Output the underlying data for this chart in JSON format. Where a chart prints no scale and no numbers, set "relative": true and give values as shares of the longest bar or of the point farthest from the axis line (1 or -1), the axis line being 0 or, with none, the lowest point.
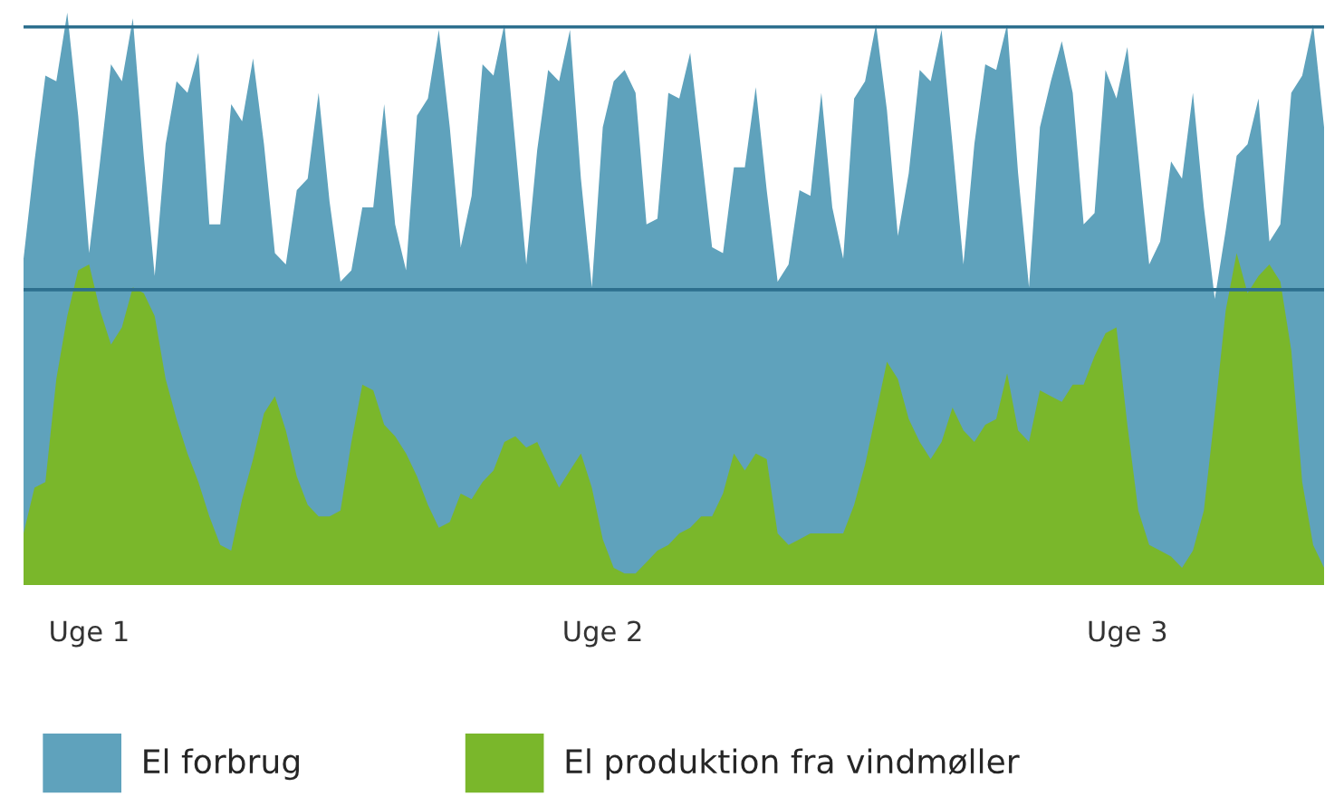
{
  "chart_data": {
    "type": "area",
    "relative": true,
    "categories": [
      null,
      null,
      null,
      null,
      null,
      null,
      "Uge 1",
      null,
      null,
      null,
      null,
      null,
      null,
      null,
      null,
      null,
      null,
      null,
      null,
      null,
      null,
      null,
      null,
      null,
      null,
      null,
      null,
      null,
      null,
      null,
      null,
      null,
      null,
      null,
      null,
      null,
      null,
      null,
      null,
      null,
      null,
      null,
      null,
      null,
      null,
      null,
      null,
      null,
      null,
      null,
      null,
      null,
      null,
      "Uge 2",
      null,
      null,
      null,
      null,
      null,
      null,
      null,
      null,
      null,
      null,
      null,
      null,
      null,
      null,
      null,
      null,
      null,
      null,
      null,
      null,
      null,
      null,
      null,
      null,
      null,
      null,
      null,
      null,
      null,
      null,
      null,
      null,
      null,
      null,
      null,
      null,
      null,
      null,
      null,
      null,
      null,
      null,
      null,
      null,
      null,
      null,
      null,
      "Uge 3",
      null,
      null,
      null,
      null,
      null,
      null,
      null,
      null,
      null,
      null,
      null,
      null,
      null,
      null,
      null,
      null,
      null,
      null
    ],
    "grid": false,
    "legend": "bottom",
    "ref_lines": [
      {
        "axis": "y",
        "value": 0.975,
        "color": "#2d6f8e"
      },
      {
        "axis": "y",
        "value": 0.516,
        "color": "#2d6f8e"
      }
    ],
    "series": [
      {
        "name": "El forbrug",
        "color": "#5fa2bc",
        "values": [
          0.57,
          0.74,
          0.89,
          0.88,
          1.0,
          0.82,
          0.58,
          0.74,
          0.91,
          0.88,
          0.99,
          0.75,
          0.54,
          0.77,
          0.88,
          0.86,
          0.93,
          0.63,
          0.63,
          0.84,
          0.81,
          0.92,
          0.77,
          0.58,
          0.56,
          0.69,
          0.71,
          0.86,
          0.67,
          0.53,
          0.55,
          0.66,
          0.66,
          0.84,
          0.63,
          0.55,
          0.82,
          0.85,
          0.97,
          0.8,
          0.59,
          0.68,
          0.91,
          0.89,
          0.98,
          0.77,
          0.56,
          0.76,
          0.9,
          0.88,
          0.97,
          0.71,
          0.52,
          0.8,
          0.88,
          0.9,
          0.86,
          0.63,
          0.64,
          0.86,
          0.85,
          0.93,
          0.76,
          0.59,
          0.58,
          0.73,
          0.73,
          0.87,
          0.69,
          0.53,
          0.56,
          0.69,
          0.68,
          0.86,
          0.66,
          0.57,
          0.85,
          0.88,
          0.98,
          0.83,
          0.61,
          0.72,
          0.9,
          0.88,
          0.97,
          0.77,
          0.56,
          0.77,
          0.91,
          0.9,
          0.98,
          0.72,
          0.52,
          0.8,
          0.88,
          0.95,
          0.86,
          0.63,
          0.65,
          0.9,
          0.85,
          0.94,
          0.75,
          0.56,
          0.6,
          0.74,
          0.71,
          0.86,
          0.66,
          0.5,
          0.62,
          0.75,
          0.77,
          0.85,
          0.6,
          0.63,
          0.86,
          0.89,
          0.98,
          0.8
        ]
      },
      {
        "name": "El produktion fra vindmøller",
        "color": "#7ab72b",
        "values": [
          0.09,
          0.17,
          0.18,
          0.36,
          0.47,
          0.55,
          0.56,
          0.48,
          0.42,
          0.45,
          0.52,
          0.51,
          0.47,
          0.36,
          0.29,
          0.23,
          0.18,
          0.12,
          0.07,
          0.06,
          0.15,
          0.22,
          0.3,
          0.33,
          0.27,
          0.19,
          0.14,
          0.12,
          0.12,
          0.13,
          0.25,
          0.35,
          0.34,
          0.28,
          0.26,
          0.23,
          0.19,
          0.14,
          0.1,
          0.11,
          0.16,
          0.15,
          0.18,
          0.2,
          0.25,
          0.26,
          0.24,
          0.25,
          0.21,
          0.17,
          0.2,
          0.23,
          0.17,
          0.08,
          0.03,
          0.02,
          0.02,
          0.04,
          0.06,
          0.07,
          0.09,
          0.1,
          0.12,
          0.12,
          0.16,
          0.23,
          0.2,
          0.23,
          0.22,
          0.09,
          0.07,
          0.08,
          0.09,
          0.09,
          0.09,
          0.09,
          0.14,
          0.21,
          0.3,
          0.39,
          0.36,
          0.29,
          0.25,
          0.22,
          0.25,
          0.31,
          0.27,
          0.25,
          0.28,
          0.29,
          0.37,
          0.27,
          0.25,
          0.34,
          0.33,
          0.32,
          0.35,
          0.35,
          0.4,
          0.44,
          0.45,
          0.28,
          0.13,
          0.07,
          0.06,
          0.05,
          0.03,
          0.06,
          0.13,
          0.3,
          0.48,
          0.58,
          0.51,
          0.54,
          0.56,
          0.53,
          0.41,
          0.18,
          0.07,
          0.03
        ]
      }
    ]
  }
}
